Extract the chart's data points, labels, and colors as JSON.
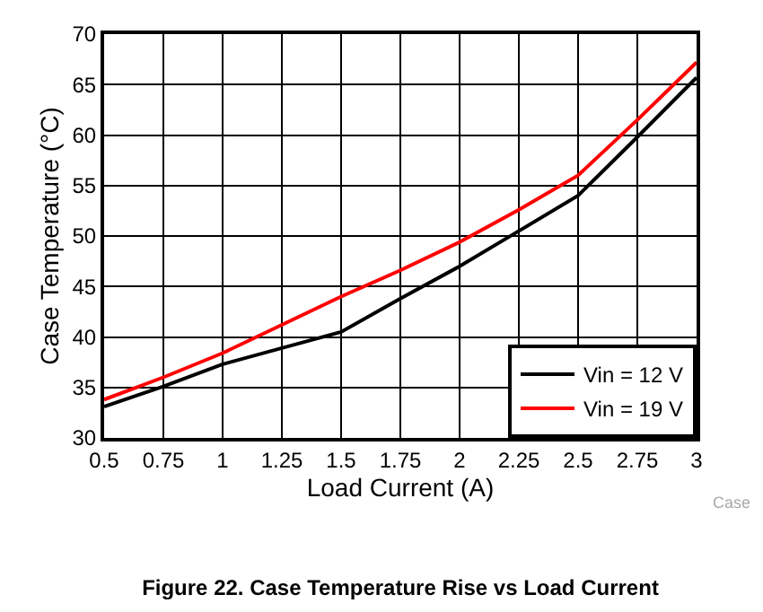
{
  "chart_data": {
    "type": "line",
    "title": "Figure 22. Case Temperature Rise vs Load Current",
    "xlabel": "Load Current (A)",
    "ylabel": "Case Temperature (°C)",
    "x": [
      0.5,
      0.75,
      1,
      1.25,
      1.5,
      1.75,
      2,
      2.25,
      2.5,
      2.75,
      3
    ],
    "series": [
      {
        "name": "Vin = 12 V",
        "color": "#000000",
        "values": [
          33.1,
          35.1,
          37.3,
          38.9,
          40.5,
          43.8,
          47,
          50.5,
          54,
          59.8,
          65.7
        ]
      },
      {
        "name": "Vin = 19 V",
        "color": "#ff0000",
        "values": [
          33.8,
          36,
          38.4,
          41.2,
          44,
          46.6,
          49.4,
          52.6,
          56,
          61.5,
          67.2
        ]
      }
    ],
    "xlim": [
      0.5,
      3
    ],
    "xticks": [
      0.5,
      0.75,
      1,
      1.25,
      1.5,
      1.75,
      2,
      2.25,
      2.5,
      2.75,
      3
    ],
    "ylim": [
      30,
      70
    ],
    "yticks": [
      30,
      35,
      40,
      45,
      50,
      55,
      60,
      65,
      70
    ],
    "grid": true,
    "legend": "bottom right",
    "marker": "none",
    "line_style": "solid",
    "annotations": [
      "Case"
    ]
  }
}
